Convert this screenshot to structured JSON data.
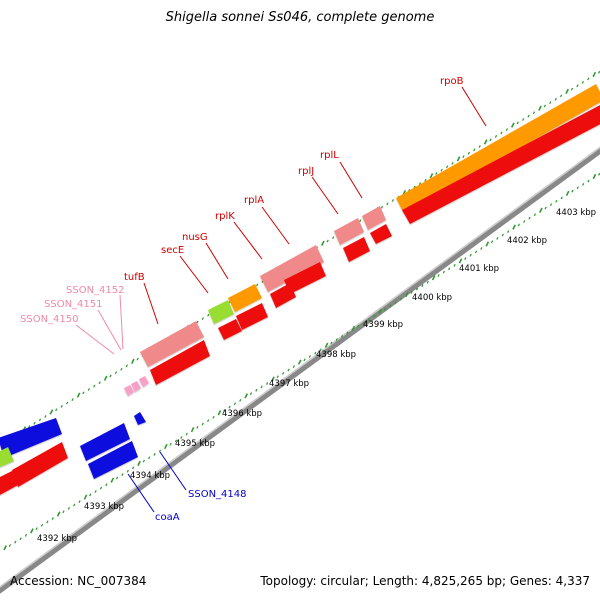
{
  "map": {
    "title": "Shigella sonnei Ss046, complete genome",
    "accession": "Accession: NC_007384",
    "summary": "Topology: circular; Length: 4,825,265 bp; Genes: 4,337"
  },
  "scale": {
    "unit": "kbp",
    "ticks": [
      {
        "label": "4392 kbp",
        "kbp": 4392
      },
      {
        "label": "4393 kbp",
        "kbp": 4393
      },
      {
        "label": "4394 kbp",
        "kbp": 4394
      },
      {
        "label": "4395 kbp",
        "kbp": 4395
      },
      {
        "label": "4396 kbp",
        "kbp": 4396
      },
      {
        "label": "4397 kbp",
        "kbp": 4397
      },
      {
        "label": "4398 kbp",
        "kbp": 4398
      },
      {
        "label": "4399 kbp",
        "kbp": 4399
      },
      {
        "label": "4400 kbp",
        "kbp": 4400
      },
      {
        "label": "4401 kbp",
        "kbp": 4401
      },
      {
        "label": "4402 kbp",
        "kbp": 4402
      },
      {
        "label": "4403 kbp",
        "kbp": 4403
      }
    ]
  },
  "colors": {
    "cds_forward": "#ee1111",
    "gene_forward": "#f08a8a",
    "cds_reverse": "#1111dd",
    "trna": "#f7a0c8",
    "highlight_orange": "#ff9900",
    "highlight_green": "#99dd33",
    "backbone": "#999999",
    "tick": "#339933"
  },
  "gene_labels": [
    {
      "text": "rpoB",
      "color": "#cc0000"
    },
    {
      "text": "rplL",
      "color": "#cc0000"
    },
    {
      "text": "rplJ",
      "color": "#cc0000"
    },
    {
      "text": "rplA",
      "color": "#cc0000"
    },
    {
      "text": "rplK",
      "color": "#cc0000"
    },
    {
      "text": "nusG",
      "color": "#cc0000"
    },
    {
      "text": "secE",
      "color": "#cc0000"
    },
    {
      "text": "tufB",
      "color": "#cc0000"
    },
    {
      "text": "SSON_4152",
      "color": "#f08aa8"
    },
    {
      "text": "SSON_4151",
      "color": "#f08aa8"
    },
    {
      "text": "SSON_4150",
      "color": "#f08aa8"
    },
    {
      "text": "SSON_4148",
      "color": "#0000cc"
    },
    {
      "text": "coaA",
      "color": "#0000cc"
    }
  ]
}
